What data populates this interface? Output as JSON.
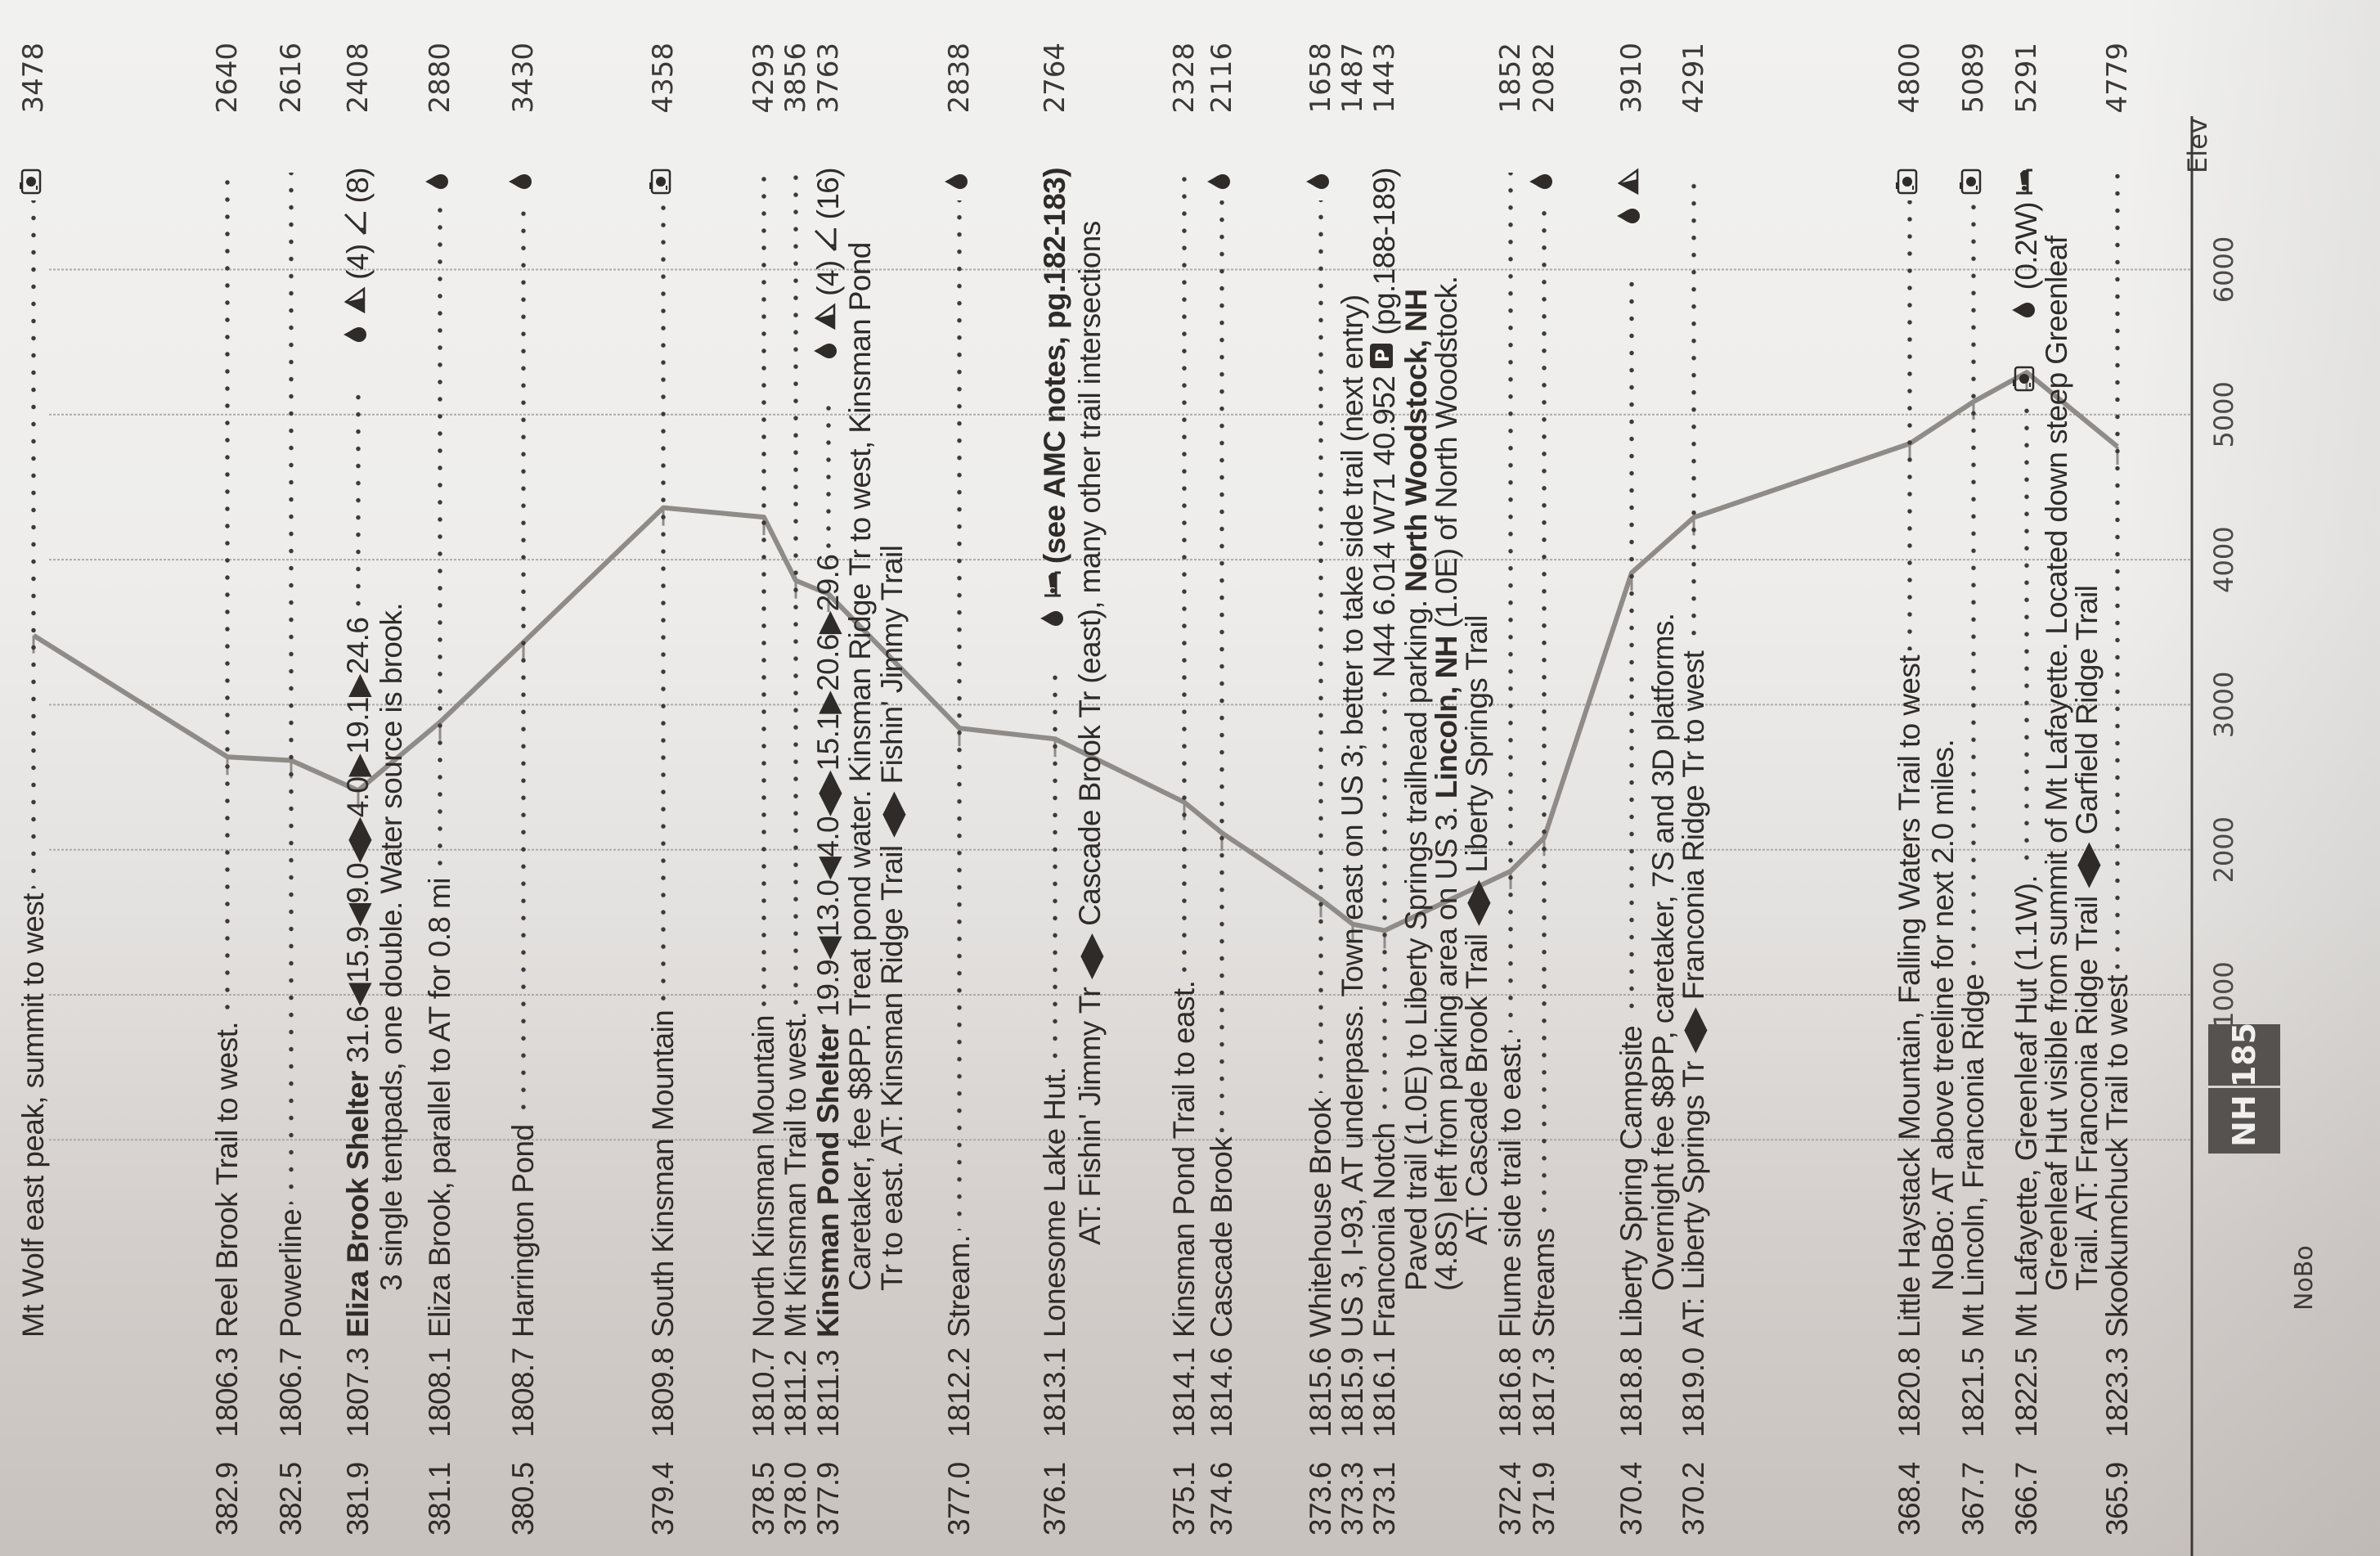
{
  "page": {
    "page_number": "185",
    "region": "NH",
    "direction": "NoBo"
  },
  "profile": {
    "axis_label": "Elev",
    "ticks": [
      "1000",
      "2000",
      "3000",
      "4000",
      "5000",
      "6000"
    ],
    "line_color": "#8f8b88"
  },
  "entries": [
    {
      "sobo": "",
      "nobo": "",
      "name": "",
      "text": "Mt Wolf east peak, summit to west",
      "dots": true,
      "note": "",
      "icons": [
        {
          "icon": "camera"
        }
      ],
      "elev": "3478"
    },
    {
      "sobo": "382.9",
      "nobo": "1806.3",
      "name": "",
      "text": "Reel Brook Trail to west.",
      "dots": true,
      "note": "",
      "icons": [],
      "elev": "2640"
    },
    {
      "sobo": "382.5",
      "nobo": "1806.7",
      "name": "",
      "text": "Powerline",
      "dots": true,
      "note": "",
      "icons": [],
      "elev": "2616"
    },
    {
      "sobo": "381.9",
      "nobo": "1807.3",
      "name": "Eliza Brook Shelter",
      "text": " 31.6◀15.9◀9.0◀▶4.0▶19.1▶24.6",
      "dots": true,
      "note": "",
      "icons": [
        {
          "icon": "moon"
        },
        {
          "icon": "drop"
        },
        {
          "icon": "tent"
        },
        {
          "text": "(4)"
        },
        {
          "icon": "shelter"
        },
        {
          "text": "(8)"
        }
      ],
      "elev": "2408"
    },
    {
      "indent": 1,
      "text": "3 single tentpads, one double.  Water source is brook."
    },
    {
      "sobo": "381.1",
      "nobo": "1808.1",
      "name": "",
      "text": "Eliza Brook, parallel to AT for 0.8 mi",
      "dots": true,
      "note": "",
      "icons": [
        {
          "icon": "drop"
        }
      ],
      "elev": "2880"
    },
    {
      "sobo": "380.5",
      "nobo": "1808.7",
      "name": "",
      "text": "Harrington Pond",
      "dots": true,
      "note": "",
      "icons": [
        {
          "icon": "drop"
        }
      ],
      "elev": "3430"
    },
    {
      "sobo": "379.4",
      "nobo": "1809.8",
      "name": "",
      "text": "South Kinsman Mountain",
      "dots": true,
      "note": "",
      "icons": [
        {
          "icon": "camera"
        }
      ],
      "elev": "4358"
    },
    {
      "sobo": "378.5",
      "nobo": "1810.7",
      "name": "",
      "text": "North Kinsman Mountain",
      "dots": true,
      "note": "",
      "icons": [],
      "elev": "4293"
    },
    {
      "sobo": "378.0",
      "nobo": "1811.2",
      "name": "",
      "text": "Mt Kinsman Trail to west.",
      "dots": true,
      "note": "",
      "icons": [],
      "elev": "3856"
    },
    {
      "sobo": "377.9",
      "nobo": "1811.3",
      "name": "Kinsman Pond Shelter",
      "text": " 19.9◀13.0◀4.0◀▶15.1▶20.6▶29.6",
      "dots": true,
      "note": "",
      "icons": [
        {
          "icon": "moon"
        },
        {
          "icon": "drop"
        },
        {
          "icon": "tent"
        },
        {
          "text": "(4)"
        },
        {
          "icon": "shelter"
        },
        {
          "text": "(16)"
        }
      ],
      "elev": "3763"
    },
    {
      "indent": 1,
      "text": "Caretaker, fee $8PP. Treat pond water. Kinsman Ridge Tr to west, Kinsman Pond"
    },
    {
      "indent": 1,
      "text": "Tr to east.   AT: Kinsman Ridge Trail ◀▶ Fishin' Jimmy Trail"
    },
    {
      "sobo": "377.0",
      "nobo": "1812.2",
      "name": "",
      "text": "Stream.",
      "dots": true,
      "note": "",
      "icons": [
        {
          "icon": "drop"
        }
      ],
      "elev": "2838"
    },
    {
      "sobo": "376.1",
      "nobo": "1813.1",
      "name": "",
      "text": "Lonesome Lake Hut.",
      "dots": true,
      "note": "",
      "icons": [
        {
          "icon": "moon"
        },
        {
          "icon": "drop"
        },
        {
          "icon": "bed"
        },
        {
          "bold": "(see AMC notes, pg.182-183)"
        }
      ],
      "elev": "2764"
    },
    {
      "indent": 2,
      "text": "AT: Fishin' Jimmy Tr ◀▶ Cascade Brook Tr (east), many other trail intersections"
    },
    {
      "sobo": "375.1",
      "nobo": "1814.1",
      "name": "",
      "text": "Kinsman Pond Trail to east.",
      "dots": true,
      "note": "",
      "icons": [],
      "elev": "2328"
    },
    {
      "sobo": "374.6",
      "nobo": "1814.6",
      "name": "",
      "text": "Cascade Brook",
      "dots": true,
      "note": "",
      "icons": [
        {
          "icon": "drop"
        }
      ],
      "elev": "2116"
    },
    {
      "sobo": "373.6",
      "nobo": "1815.6",
      "name": "",
      "text": "Whitehouse Brook",
      "dots": true,
      "note": "",
      "icons": [
        {
          "icon": "drop"
        }
      ],
      "elev": "1658"
    },
    {
      "sobo": "373.3",
      "nobo": "1815.9",
      "name": "",
      "text": "US 3, I-93, AT underpass.  Town east on US 3; better to take side trail (next entry)",
      "dots": false,
      "note": "",
      "icons": [],
      "elev": "1487"
    },
    {
      "sobo": "373.1",
      "nobo": "1816.1",
      "name": "",
      "text": "Franconia Notch",
      "dots": true,
      "note": "N44 6.014 W71 40.952",
      "icons": [
        {
          "icon": "parking"
        },
        {
          "text": "(pg.188-189)"
        }
      ],
      "elev": "1443"
    },
    {
      "indent": 1,
      "text": "Paved trail (1.0E) to Liberty Springs trailhead parking. ",
      "bold2": "North Woodstock, NH",
      "text2": ""
    },
    {
      "indent": 1,
      "text": "(4.8S) left from parking area on US 3. ",
      "bold2": "Lincoln, NH",
      "text2": " (1.0E) of North Woodstock."
    },
    {
      "indent": 2,
      "text": "AT: Cascade Brook Trail ◀▶ Liberty Springs Trail"
    },
    {
      "sobo": "372.4",
      "nobo": "1816.8",
      "name": "",
      "text": "Flume side trail to east.",
      "dots": true,
      "note": "",
      "icons": [],
      "elev": "1852"
    },
    {
      "sobo": "371.9",
      "nobo": "1817.3",
      "name": "",
      "text": "Streams",
      "dots": true,
      "note": "",
      "icons": [
        {
          "icon": "drop"
        }
      ],
      "elev": "2082"
    },
    {
      "sobo": "370.4",
      "nobo": "1818.8",
      "name": "",
      "text": "Liberty Spring Campsite",
      "dots": true,
      "note": "",
      "icons": [
        {
          "icon": "moon"
        },
        {
          "icon": "drop"
        },
        {
          "icon": "tent"
        }
      ],
      "elev": "3910"
    },
    {
      "indent": 1,
      "text": "Overnight fee $8PP, caretaker, 7S and 3D platforms."
    },
    {
      "sobo": "370.2",
      "nobo": "1819.0",
      "name": "",
      "text": "AT: Liberty Springs Tr ◀▶ Franconia Ridge Tr to west",
      "dots": true,
      "note": "",
      "icons": [],
      "elev": "4291"
    },
    {
      "sobo": "368.4",
      "nobo": "1820.8",
      "name": "",
      "text": "Little Haystack Mountain, Falling Waters Trail to west",
      "dots": true,
      "note": "",
      "icons": [
        {
          "icon": "camera"
        }
      ],
      "elev": "4800"
    },
    {
      "indent": 1,
      "text": "NoBo: AT above treeline for next 2.0 miles."
    },
    {
      "sobo": "367.7",
      "nobo": "1821.5",
      "name": "",
      "text": "Mt Lincoln, Franconia Ridge",
      "dots": true,
      "note": "",
      "icons": [
        {
          "icon": "camera"
        }
      ],
      "elev": "5089"
    },
    {
      "sobo": "366.7",
      "nobo": "1822.5",
      "name": "",
      "text": "Mt Lafayette, Greenleaf Hut (1.1W).",
      "dots": true,
      "note": "",
      "icons": [
        {
          "icon": "camera"
        },
        {
          "icon": "moon"
        },
        {
          "icon": "drop"
        },
        {
          "text": "(0.2W)"
        },
        {
          "icon": "bed"
        }
      ],
      "elev": "5291"
    },
    {
      "indent": 1,
      "text": "Greenleaf Hut visible from summit of Mt Lafayette. Located down steep Greenleaf"
    },
    {
      "indent": 1,
      "text": "Trail.  AT: Franconia Ridge Trail ◀▶ Garfield Ridge Trail"
    },
    {
      "sobo": "365.9",
      "nobo": "1823.3",
      "name": "",
      "text": "Skookumchuck Trail to west",
      "dots": true,
      "note": "",
      "icons": [],
      "elev": "4779"
    }
  ]
}
